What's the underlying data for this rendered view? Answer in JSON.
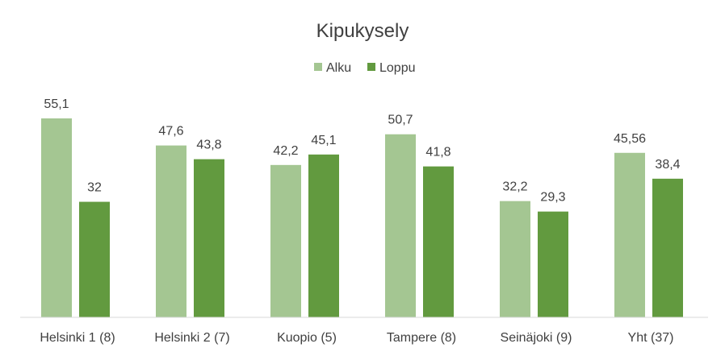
{
  "chart_data": {
    "type": "bar",
    "title": "Kipukysely",
    "categories": [
      "Helsinki 1 (8)",
      "Helsinki 2 (7)",
      "Kuopio (5)",
      "Tampere (8)",
      "Seinäjoki (9)",
      "Yht (37)"
    ],
    "series": [
      {
        "name": "Alku",
        "values": [
          55.1,
          47.6,
          42.2,
          50.7,
          32.2,
          45.56
        ],
        "labels": [
          "55,1",
          "47,6",
          "42,2",
          "50,7",
          "32,2",
          "45,56"
        ],
        "color": "#a4c692"
      },
      {
        "name": "Loppu",
        "values": [
          32,
          43.8,
          45.1,
          41.8,
          29.3,
          38.4
        ],
        "labels": [
          "32",
          "43,8",
          "45,1",
          "41,8",
          "29,3",
          "38,4"
        ],
        "color": "#629a3f"
      }
    ],
    "ylim": [
      0,
      68
    ],
    "grid": false,
    "legend_position": "top-center"
  }
}
